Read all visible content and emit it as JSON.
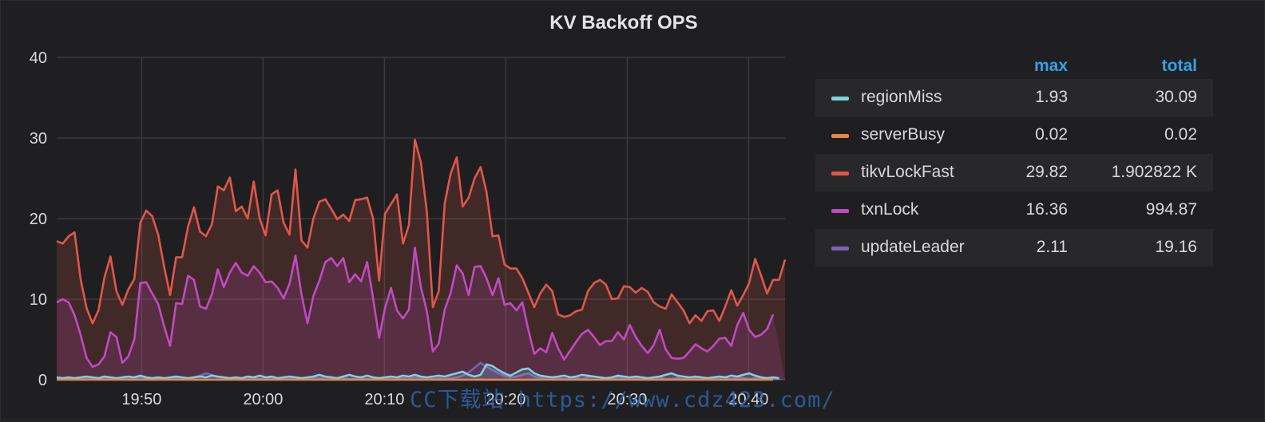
{
  "panel": {
    "title": "KV Backoff OPS"
  },
  "legend": {
    "headers": {
      "max": "max",
      "total": "total"
    },
    "rows": [
      {
        "name": "regionMiss",
        "max": "1.93",
        "total": "30.09",
        "color": "#7fd1e0"
      },
      {
        "name": "serverBusy",
        "max": "0.02",
        "total": "0.02",
        "color": "#e8864a"
      },
      {
        "name": "tikvLockFast",
        "max": "29.82",
        "total": "1.902822 K",
        "color": "#e0574a"
      },
      {
        "name": "txnLock",
        "max": "16.36",
        "total": "994.87",
        "color": "#c14ac2"
      },
      {
        "name": "updateLeader",
        "max": "2.11",
        "total": "19.16",
        "color": "#7b62b0"
      }
    ]
  },
  "watermark": "CC下载站 https://www.cdz423.com/",
  "chart_data": {
    "type": "line",
    "title": "KV Backoff OPS",
    "ylim": [
      0,
      40
    ],
    "yticks": [
      "0",
      "10",
      "20",
      "30",
      "40"
    ],
    "xticks": [
      {
        "label": "19:50",
        "t": 7
      },
      {
        "label": "20:00",
        "t": 17
      },
      {
        "label": "20:10",
        "t": 27
      },
      {
        "label": "20:20",
        "t": 37
      },
      {
        "label": "20:30",
        "t": 47
      },
      {
        "label": "20:40",
        "t": 57
      }
    ],
    "x_start": "19:43",
    "x_end": "20:43",
    "grid": true,
    "legend_position": "right",
    "series": [
      {
        "name": "tikvLockFast",
        "color": "#e0574a",
        "values": [
          17.2,
          16.9,
          17.8,
          18.3,
          12.5,
          8.9,
          7.0,
          8.6,
          12.7,
          15.3,
          11.0,
          9.3,
          11.2,
          12.5,
          19.5,
          21.0,
          20.3,
          18.0,
          14.0,
          10.5,
          15.2,
          15.2,
          19.0,
          21.4,
          18.4,
          17.8,
          19.3,
          24.0,
          23.5,
          25.1,
          20.9,
          21.5,
          20.0,
          24.6,
          20.0,
          17.9,
          23.0,
          23.5,
          19.5,
          18.0,
          26.1,
          17.3,
          16.4,
          20.0,
          22.1,
          22.4,
          21.2,
          19.9,
          20.5,
          19.7,
          22.3,
          22.4,
          22.6,
          20.0,
          12.3,
          20.6,
          21.8,
          23.0,
          16.9,
          19.2,
          29.8,
          27.0,
          20.8,
          9.0,
          11.0,
          21.9,
          25.6,
          27.6,
          21.5,
          22.6,
          25.0,
          26.4,
          23.3,
          17.8,
          17.9,
          14.3,
          13.8,
          13.8,
          12.6,
          10.8,
          9.0,
          10.7,
          11.8,
          11.0,
          8.1,
          7.8,
          8.0,
          8.5,
          8.7,
          11.0,
          12.0,
          12.4,
          11.8,
          10.0,
          10.1,
          11.6,
          11.5,
          10.8,
          11.4,
          10.9,
          9.6,
          9.1,
          8.8,
          10.6,
          9.6,
          8.6,
          7.0,
          8.0,
          7.3,
          8.5,
          8.6,
          7.3,
          9.1,
          11.1,
          9.2,
          10.5,
          12.0,
          15.0,
          12.9,
          10.7,
          12.4,
          12.4,
          14.9
        ]
      },
      {
        "name": "txnLock",
        "color": "#c14ac2",
        "values": [
          9.6,
          10.0,
          9.6,
          8.0,
          5.6,
          2.7,
          1.6,
          1.9,
          2.9,
          5.9,
          5.3,
          2.1,
          2.9,
          5.0,
          12.0,
          12.1,
          10.7,
          9.4,
          6.6,
          4.2,
          9.5,
          9.4,
          12.9,
          12.4,
          9.1,
          8.8,
          10.6,
          13.7,
          11.5,
          13.3,
          14.5,
          13.3,
          12.9,
          14.1,
          13.3,
          12.1,
          12.2,
          11.4,
          10.1,
          11.9,
          15.4,
          10.6,
          7.0,
          10.4,
          12.3,
          14.6,
          15.1,
          14.1,
          15.1,
          12.1,
          13.1,
          12.2,
          14.6,
          10.1,
          5.2,
          8.9,
          11.4,
          8.6,
          7.6,
          8.7,
          16.4,
          11.5,
          8.5,
          3.5,
          4.5,
          8.7,
          10.8,
          14.2,
          13.2,
          10.5,
          14.0,
          14.1,
          12.6,
          10.5,
          12.6,
          9.3,
          9.5,
          8.6,
          9.6,
          6.2,
          3.2,
          3.9,
          3.4,
          5.8,
          3.9,
          2.5,
          3.6,
          4.7,
          5.7,
          6.2,
          5.3,
          4.3,
          4.8,
          4.8,
          5.9,
          5.0,
          6.8,
          5.3,
          4.2,
          3.3,
          4.3,
          6.2,
          3.8,
          2.7,
          2.6,
          2.7,
          3.5,
          4.4,
          3.9,
          3.5,
          4.2,
          5.1,
          5.2,
          4.2,
          6.8,
          8.3,
          6.2,
          5.3,
          5.6,
          6.3,
          8.1
        ]
      },
      {
        "name": "updateLeader",
        "color": "#7b62b0",
        "values": [
          0.1,
          0.1,
          0.1,
          0.2,
          0.1,
          0.1,
          0.2,
          0.1,
          0.1,
          0.2,
          0.1,
          0.1,
          0.1,
          0.2,
          0.3,
          0.2,
          0.1,
          0.1,
          0.1,
          0.1,
          0.2,
          0.2,
          0.1,
          0.3,
          0.5,
          0.8,
          0.6,
          0.3,
          0.2,
          0.1,
          0.2,
          0.1,
          0.1,
          0.2,
          0.1,
          0.1,
          0.2,
          0.1,
          0.2,
          0.1,
          0.3,
          0.1,
          0.1,
          0.2,
          0.2,
          0.3,
          0.1,
          0.1,
          0.2,
          0.1,
          0.1,
          0.2,
          0.1,
          0.1,
          0.1,
          0.2,
          0.1,
          0.1,
          0.2,
          0.1,
          0.3,
          0.2,
          0.1,
          0.1,
          0.2,
          0.1,
          0.2,
          0.3,
          0.5,
          0.9,
          1.5,
          2.1,
          1.6,
          1.2,
          0.8,
          0.5,
          0.3,
          0.4,
          0.6,
          0.8,
          0.4,
          0.2,
          0.3,
          0.1,
          0.2,
          0.1,
          0.1,
          0.2,
          0.1,
          0.3,
          0.4,
          0.2,
          0.2,
          0.1,
          0.3,
          0.2,
          0.1,
          0.2,
          0.1,
          0.1,
          0.2,
          0.3,
          0.1,
          0.1,
          0.2,
          0.1,
          0.1,
          0.2,
          0.1,
          0.1,
          0.2,
          0.1,
          0.2,
          0.1,
          0.3,
          0.2,
          0.1,
          0.2,
          0.1,
          0.2,
          0.1,
          0.1
        ]
      },
      {
        "name": "regionMiss",
        "color": "#7fd1e0",
        "values": [
          0.3,
          0.2,
          0.3,
          0.2,
          0.3,
          0.4,
          0.3,
          0.2,
          0.4,
          0.3,
          0.2,
          0.3,
          0.4,
          0.3,
          0.5,
          0.3,
          0.2,
          0.3,
          0.2,
          0.3,
          0.4,
          0.3,
          0.2,
          0.3,
          0.4,
          0.3,
          0.5,
          0.4,
          0.3,
          0.2,
          0.3,
          0.2,
          0.4,
          0.3,
          0.5,
          0.3,
          0.4,
          0.2,
          0.3,
          0.4,
          0.3,
          0.2,
          0.3,
          0.4,
          0.6,
          0.4,
          0.3,
          0.2,
          0.4,
          0.6,
          0.4,
          0.3,
          0.5,
          0.3,
          0.2,
          0.3,
          0.4,
          0.3,
          0.5,
          0.4,
          0.6,
          0.4,
          0.3,
          0.4,
          0.5,
          0.4,
          0.6,
          0.8,
          1.0,
          0.6,
          0.4,
          0.6,
          1.9,
          1.7,
          1.2,
          0.8,
          0.5,
          0.9,
          1.3,
          1.4,
          0.8,
          0.5,
          0.4,
          0.3,
          0.4,
          0.5,
          0.3,
          0.4,
          0.6,
          0.5,
          0.4,
          0.3,
          0.2,
          0.3,
          0.5,
          0.4,
          0.3,
          0.4,
          0.3,
          0.2,
          0.3,
          0.4,
          0.6,
          0.8,
          0.5,
          0.4,
          0.3,
          0.4,
          0.3,
          0.2,
          0.3,
          0.4,
          0.3,
          0.5,
          0.4,
          0.6,
          0.8,
          0.5,
          0.3,
          0.2,
          0.3,
          0.2
        ]
      },
      {
        "name": "serverBusy",
        "color": "#e8864a",
        "values": [
          0,
          0,
          0,
          0,
          0,
          0,
          0,
          0,
          0,
          0,
          0,
          0,
          0,
          0,
          0,
          0,
          0,
          0,
          0,
          0,
          0,
          0,
          0,
          0,
          0,
          0,
          0,
          0,
          0,
          0,
          0,
          0,
          0,
          0,
          0,
          0,
          0,
          0,
          0,
          0,
          0,
          0,
          0,
          0,
          0,
          0,
          0,
          0,
          0,
          0,
          0,
          0,
          0,
          0,
          0,
          0,
          0,
          0,
          0,
          0,
          0,
          0,
          0,
          0,
          0,
          0,
          0,
          0,
          0,
          0,
          0,
          0.02,
          0,
          0,
          0,
          0,
          0,
          0,
          0,
          0,
          0,
          0,
          0,
          0,
          0,
          0,
          0,
          0,
          0,
          0,
          0,
          0,
          0,
          0,
          0,
          0,
          0,
          0,
          0,
          0,
          0,
          0,
          0,
          0,
          0,
          0,
          0,
          0,
          0,
          0,
          0,
          0,
          0,
          0,
          0,
          0,
          0,
          0,
          0,
          0,
          0
        ]
      }
    ]
  }
}
